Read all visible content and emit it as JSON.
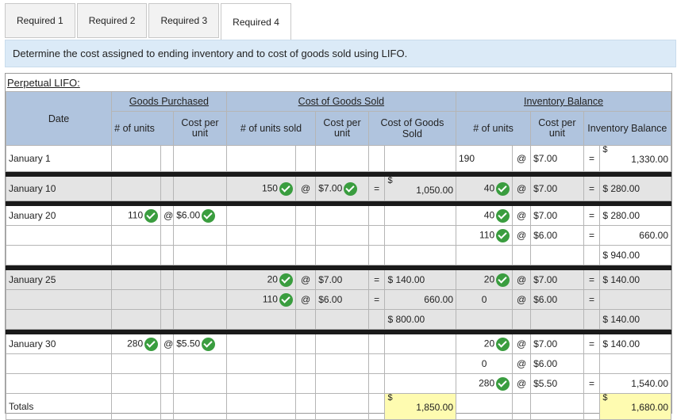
{
  "tabs": [
    {
      "label": "Required 1"
    },
    {
      "label": "Required 2"
    },
    {
      "label": "Required 3"
    },
    {
      "label": "Required 4"
    }
  ],
  "instruction": "Determine the cost assigned to ending inventory and to cost of goods sold using LIFO.",
  "panel_title": "Perpetual LIFO:",
  "headers": {
    "goods_purchased": "Goods Purchased",
    "cost_of_goods_sold": "Cost of Goods Sold",
    "inventory_balance": "Inventory Balance",
    "date": "Date",
    "gp_units": "# of units",
    "gp_cost": "Cost per unit",
    "cogs_units": "# of units sold",
    "cogs_cost": "Cost per unit",
    "cogs_total": "Cost of Goods Sold",
    "ib_units": "# of units",
    "ib_cost": "Cost per unit",
    "ib_balance": "Inventory Balance"
  },
  "symbols": {
    "at": "@",
    "eq": "=",
    "dollar": "$"
  },
  "rows": {
    "jan1": {
      "date": "January 1",
      "ib_units": "190",
      "ib_cost": "$7.00",
      "ib_balance": "1,330.00"
    },
    "jan10": {
      "date": "January 10",
      "cogs_units": "150",
      "cogs_cost": "$7.00",
      "cogs_total": "1,050.00",
      "ib_units": "40",
      "ib_cost": "$7.00",
      "ib_balance": "$ 280.00"
    },
    "jan20a": {
      "date": "January 20",
      "gp_units": "110",
      "gp_cost": "$6.00",
      "ib_units": "40",
      "ib_cost": "$7.00",
      "ib_balance": "$ 280.00"
    },
    "jan20b": {
      "ib_units": "110",
      "ib_cost": "$6.00",
      "ib_balance": "660.00"
    },
    "jan20t": {
      "ib_balance": "$ 940.00"
    },
    "jan25a": {
      "date": "January 25",
      "cogs_units": "20",
      "cogs_cost": "$7.00",
      "cogs_total": "$ 140.00",
      "ib_units": "20",
      "ib_cost": "$7.00",
      "ib_balance": "$ 140.00"
    },
    "jan25b": {
      "cogs_units": "110",
      "cogs_cost": "$6.00",
      "cogs_total": "660.00",
      "ib_units": "0",
      "ib_cost": "$6.00"
    },
    "jan25t": {
      "cogs_total": "$ 800.00",
      "ib_balance": "$ 140.00"
    },
    "jan30a": {
      "date": "January 30",
      "gp_units": "280",
      "gp_cost": "$5.50",
      "ib_units": "20",
      "ib_cost": "$7.00",
      "ib_balance": "$ 140.00"
    },
    "jan30b": {
      "ib_units": "0",
      "ib_cost": "$6.00"
    },
    "jan30c": {
      "ib_units": "280",
      "ib_cost": "$5.50",
      "ib_balance": "1,540.00"
    },
    "totals": {
      "date": "Totals",
      "cogs_total": "1,850.00",
      "ib_balance": "1,680.00"
    }
  }
}
